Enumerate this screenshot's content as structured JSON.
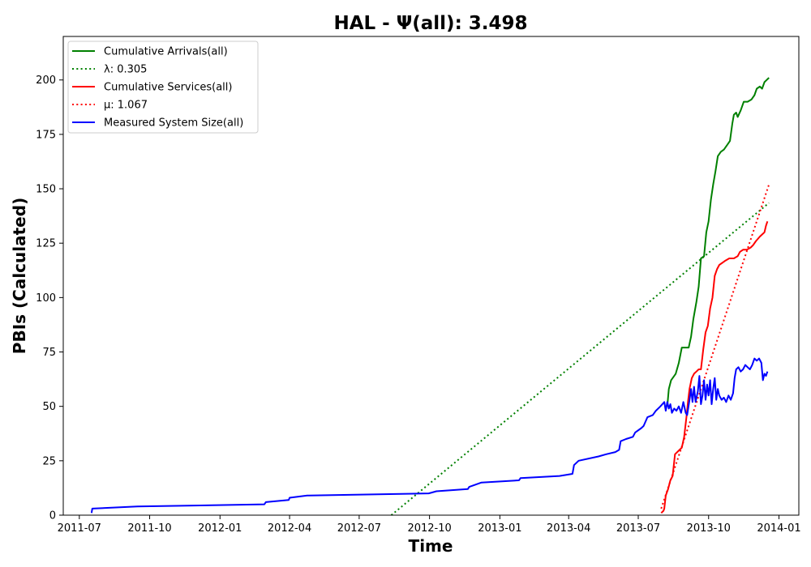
{
  "chart_data": {
    "type": "line",
    "title": "HAL -  Ψ(all): 3.498",
    "xlabel": "Time",
    "ylabel": "PBIs (Calculated)",
    "xlim": [
      "2011-06-10",
      "2014-01-27"
    ],
    "ylim": [
      0,
      220
    ],
    "x_ticks": [
      {
        "date": "2011-07-01",
        "label": "2011-07"
      },
      {
        "date": "2011-10-01",
        "label": "2011-10"
      },
      {
        "date": "2012-01-01",
        "label": "2012-01"
      },
      {
        "date": "2012-04-01",
        "label": "2012-04"
      },
      {
        "date": "2012-07-01",
        "label": "2012-07"
      },
      {
        "date": "2012-10-01",
        "label": "2012-10"
      },
      {
        "date": "2013-01-01",
        "label": "2013-01"
      },
      {
        "date": "2013-04-01",
        "label": "2013-04"
      },
      {
        "date": "2013-07-01",
        "label": "2013-07"
      },
      {
        "date": "2013-10-01",
        "label": "2013-10"
      },
      {
        "date": "2014-01-01",
        "label": "2014-01"
      }
    ],
    "y_ticks": [
      0,
      25,
      50,
      75,
      100,
      125,
      150,
      175,
      200
    ],
    "grid": false,
    "legend_position": "top-left",
    "series": [
      {
        "name": "Cumulative Arrivals(all)",
        "color": "#008000",
        "style": "solid",
        "points": [
          [
            "2013-08-08",
            50
          ],
          [
            "2013-08-10",
            58
          ],
          [
            "2013-08-13",
            62
          ],
          [
            "2013-08-19",
            65
          ],
          [
            "2013-08-23",
            70
          ],
          [
            "2013-08-27",
            77
          ],
          [
            "2013-08-31",
            77
          ],
          [
            "2013-09-05",
            77
          ],
          [
            "2013-09-08",
            82
          ],
          [
            "2013-09-11",
            90
          ],
          [
            "2013-09-15",
            98
          ],
          [
            "2013-09-18",
            105
          ],
          [
            "2013-09-21",
            118
          ],
          [
            "2013-09-25",
            119
          ],
          [
            "2013-09-28",
            130
          ],
          [
            "2013-10-01",
            135
          ],
          [
            "2013-10-04",
            145
          ],
          [
            "2013-10-07",
            152
          ],
          [
            "2013-10-10",
            158
          ],
          [
            "2013-10-13",
            165
          ],
          [
            "2013-10-17",
            167
          ],
          [
            "2013-10-21",
            168
          ],
          [
            "2013-10-25",
            170
          ],
          [
            "2013-10-29",
            172
          ],
          [
            "2013-11-01",
            180
          ],
          [
            "2013-11-03",
            184
          ],
          [
            "2013-11-06",
            185
          ],
          [
            "2013-11-08",
            183
          ],
          [
            "2013-11-12",
            186
          ],
          [
            "2013-11-16",
            190
          ],
          [
            "2013-11-21",
            190
          ],
          [
            "2013-11-26",
            191
          ],
          [
            "2013-11-30",
            193
          ],
          [
            "2013-12-03",
            196
          ],
          [
            "2013-12-07",
            197
          ],
          [
            "2013-12-10",
            196
          ],
          [
            "2013-12-13",
            199
          ],
          [
            "2013-12-16",
            200
          ],
          [
            "2013-12-19",
            201
          ]
        ]
      },
      {
        "name": "λ: 0.305",
        "color": "#008000",
        "style": "dotted",
        "points": [
          [
            "2012-08-12",
            0
          ],
          [
            "2013-12-19",
            143.5
          ]
        ]
      },
      {
        "name": "Cumulative Services(all)",
        "color": "#ff0000",
        "style": "solid",
        "points": [
          [
            "2013-07-31",
            1
          ],
          [
            "2013-08-03",
            2
          ],
          [
            "2013-08-04",
            3
          ],
          [
            "2013-08-06",
            9
          ],
          [
            "2013-08-09",
            12
          ],
          [
            "2013-08-12",
            16
          ],
          [
            "2013-08-15",
            18
          ],
          [
            "2013-08-18",
            28
          ],
          [
            "2013-08-21",
            29
          ],
          [
            "2013-08-24",
            30
          ],
          [
            "2013-08-27",
            31
          ],
          [
            "2013-08-30",
            36
          ],
          [
            "2013-09-02",
            45
          ],
          [
            "2013-09-04",
            52
          ],
          [
            "2013-09-06",
            58
          ],
          [
            "2013-09-09",
            63
          ],
          [
            "2013-09-12",
            65
          ],
          [
            "2013-09-15",
            66
          ],
          [
            "2013-09-18",
            67
          ],
          [
            "2013-09-21",
            67
          ],
          [
            "2013-09-24",
            76
          ],
          [
            "2013-09-27",
            84
          ],
          [
            "2013-09-30",
            87
          ],
          [
            "2013-10-03",
            95
          ],
          [
            "2013-10-06",
            100
          ],
          [
            "2013-10-09",
            110
          ],
          [
            "2013-10-12",
            113
          ],
          [
            "2013-10-15",
            115
          ],
          [
            "2013-10-19",
            116
          ],
          [
            "2013-10-23",
            117
          ],
          [
            "2013-10-28",
            118
          ],
          [
            "2013-11-03",
            118
          ],
          [
            "2013-11-08",
            119
          ],
          [
            "2013-11-11",
            121
          ],
          [
            "2013-11-15",
            122
          ],
          [
            "2013-11-20",
            122
          ],
          [
            "2013-11-25",
            123
          ],
          [
            "2013-11-28",
            124
          ],
          [
            "2013-12-02",
            126
          ],
          [
            "2013-12-07",
            128
          ],
          [
            "2013-12-10",
            129
          ],
          [
            "2013-12-13",
            130
          ],
          [
            "2013-12-15",
            133
          ],
          [
            "2013-12-17",
            135
          ]
        ]
      },
      {
        "name": "μ: 1.067",
        "color": "#ff0000",
        "style": "dotted",
        "points": [
          [
            "2013-07-31",
            3
          ],
          [
            "2013-12-19",
            152
          ]
        ]
      },
      {
        "name": "Measured System Size(all)",
        "color": "#0000ff",
        "style": "solid",
        "points": [
          [
            "2011-07-17",
            1
          ],
          [
            "2011-07-18",
            3
          ],
          [
            "2011-09-15",
            4
          ],
          [
            "2012-02-28",
            5
          ],
          [
            "2012-03-01",
            6
          ],
          [
            "2012-03-31",
            7
          ],
          [
            "2012-04-01",
            8
          ],
          [
            "2012-04-24",
            9
          ],
          [
            "2012-09-30",
            10
          ],
          [
            "2012-10-10",
            11
          ],
          [
            "2012-11-20",
            12
          ],
          [
            "2012-11-22",
            13
          ],
          [
            "2012-12-08",
            15
          ],
          [
            "2013-01-26",
            16
          ],
          [
            "2013-01-28",
            17
          ],
          [
            "2013-03-20",
            18
          ],
          [
            "2013-04-06",
            19
          ],
          [
            "2013-04-08",
            23
          ],
          [
            "2013-04-14",
            25
          ],
          [
            "2013-05-10",
            27
          ],
          [
            "2013-05-20",
            28
          ],
          [
            "2013-06-01",
            29
          ],
          [
            "2013-06-06",
            30
          ],
          [
            "2013-06-08",
            34
          ],
          [
            "2013-06-15",
            35
          ],
          [
            "2013-06-24",
            36
          ],
          [
            "2013-06-27",
            38
          ],
          [
            "2013-07-05",
            40
          ],
          [
            "2013-07-08",
            41
          ],
          [
            "2013-07-13",
            45
          ],
          [
            "2013-07-20",
            46
          ],
          [
            "2013-07-24",
            48
          ],
          [
            "2013-07-30",
            50
          ],
          [
            "2013-08-04",
            52
          ],
          [
            "2013-08-06",
            48
          ],
          [
            "2013-08-08",
            52
          ],
          [
            "2013-08-10",
            49
          ],
          [
            "2013-08-12",
            51
          ],
          [
            "2013-08-14",
            47
          ],
          [
            "2013-08-17",
            49
          ],
          [
            "2013-08-20",
            48
          ],
          [
            "2013-08-23",
            50
          ],
          [
            "2013-08-26",
            47
          ],
          [
            "2013-08-29",
            52
          ],
          [
            "2013-09-01",
            47
          ],
          [
            "2013-09-03",
            46
          ],
          [
            "2013-09-06",
            53
          ],
          [
            "2013-09-08",
            58
          ],
          [
            "2013-09-10",
            52
          ],
          [
            "2013-09-12",
            59
          ],
          [
            "2013-09-14",
            52
          ],
          [
            "2013-09-17",
            57
          ],
          [
            "2013-09-19",
            64
          ],
          [
            "2013-09-21",
            51
          ],
          [
            "2013-09-23",
            55
          ],
          [
            "2013-09-25",
            62
          ],
          [
            "2013-09-27",
            53
          ],
          [
            "2013-09-29",
            60
          ],
          [
            "2013-10-01",
            55
          ],
          [
            "2013-10-03",
            62
          ],
          [
            "2013-10-05",
            51
          ],
          [
            "2013-10-07",
            58
          ],
          [
            "2013-10-09",
            63
          ],
          [
            "2013-10-11",
            53
          ],
          [
            "2013-10-13",
            58
          ],
          [
            "2013-10-15",
            55
          ],
          [
            "2013-10-18",
            53
          ],
          [
            "2013-10-21",
            54
          ],
          [
            "2013-10-24",
            52
          ],
          [
            "2013-10-27",
            55
          ],
          [
            "2013-10-30",
            53
          ],
          [
            "2013-11-02",
            56
          ],
          [
            "2013-11-04",
            63
          ],
          [
            "2013-11-06",
            67
          ],
          [
            "2013-11-09",
            68
          ],
          [
            "2013-11-12",
            66
          ],
          [
            "2013-11-15",
            67
          ],
          [
            "2013-11-18",
            69
          ],
          [
            "2013-11-21",
            68
          ],
          [
            "2013-11-24",
            67
          ],
          [
            "2013-11-27",
            69
          ],
          [
            "2013-11-30",
            72
          ],
          [
            "2013-12-03",
            71
          ],
          [
            "2013-12-06",
            72
          ],
          [
            "2013-12-09",
            70
          ],
          [
            "2013-12-11",
            62
          ],
          [
            "2013-12-13",
            65
          ],
          [
            "2013-12-15",
            64
          ],
          [
            "2013-12-17",
            66
          ]
        ]
      }
    ]
  }
}
